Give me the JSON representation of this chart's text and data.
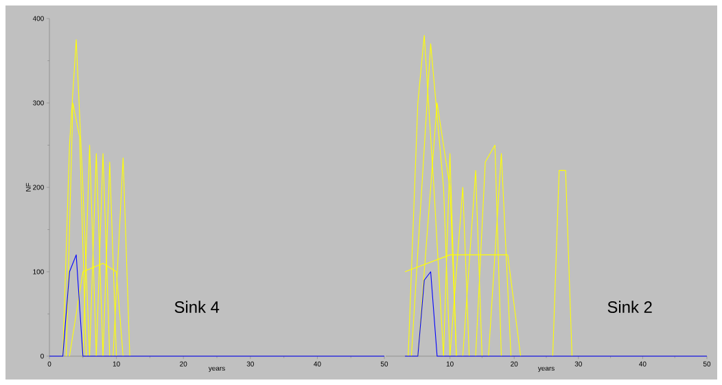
{
  "chart_data": [
    {
      "type": "line",
      "xlabel": "years",
      "ylabel": "NF",
      "xlim": [
        0,
        50
      ],
      "ylim": [
        0,
        400
      ],
      "xticks": [
        0,
        10,
        20,
        30,
        40,
        50
      ],
      "yticks": [
        0,
        100,
        200,
        300,
        400
      ],
      "marker": "none",
      "line_style": "solid",
      "annotations": [
        "Sink 4"
      ],
      "series": [
        {
          "color": "#ffff00",
          "x": [
            2,
            3,
            4,
            5,
            6
          ],
          "values": [
            0,
            250,
            375,
            200,
            0
          ]
        },
        {
          "color": "#ffff00",
          "x": [
            2.5,
            3.5,
            4.5,
            5.5
          ],
          "values": [
            0,
            300,
            260,
            0
          ]
        },
        {
          "color": "#ffff00",
          "x": [
            5,
            6,
            7
          ],
          "values": [
            0,
            250,
            0
          ]
        },
        {
          "color": "#ffff00",
          "x": [
            6,
            7,
            8
          ],
          "values": [
            0,
            240,
            0
          ]
        },
        {
          "color": "#ffff00",
          "x": [
            7,
            8,
            9
          ],
          "values": [
            0,
            240,
            0
          ]
        },
        {
          "color": "#ffff00",
          "x": [
            8,
            9,
            10
          ],
          "values": [
            0,
            230,
            0
          ]
        },
        {
          "color": "#ffff00",
          "x": [
            9.5,
            11,
            12
          ],
          "values": [
            0,
            235,
            0
          ]
        },
        {
          "color": "#ffff00",
          "x": [
            3,
            5,
            8,
            10,
            11
          ],
          "values": [
            0,
            100,
            110,
            100,
            0
          ]
        },
        {
          "color": "#0000ff",
          "x": [
            0,
            2,
            3,
            3.5,
            4,
            5,
            50
          ],
          "values": [
            0,
            0,
            100,
            110,
            120,
            0,
            0
          ]
        }
      ]
    },
    {
      "type": "line",
      "xlabel": "years",
      "xlim": [
        0,
        50
      ],
      "ylim": [
        0,
        400
      ],
      "xticks": [
        10,
        20,
        30,
        40,
        50
      ],
      "tick_labels": "x",
      "marker": "none",
      "line_style": "solid",
      "annotations": [
        "Sink 2"
      ],
      "series": [
        {
          "color": "#ffff00",
          "x": [
            3.5,
            5,
            6,
            7.5,
            9
          ],
          "values": [
            0,
            300,
            380,
            200,
            0
          ]
        },
        {
          "color": "#ffff00",
          "x": [
            4,
            7,
            9,
            10
          ],
          "values": [
            0,
            370,
            200,
            0
          ]
        },
        {
          "color": "#ffff00",
          "x": [
            5,
            8,
            10,
            11
          ],
          "values": [
            0,
            300,
            200,
            0
          ]
        },
        {
          "color": "#ffff00",
          "x": [
            9,
            10,
            11
          ],
          "values": [
            0,
            240,
            0
          ]
        },
        {
          "color": "#ffff00",
          "x": [
            10,
            12,
            13
          ],
          "values": [
            0,
            200,
            0
          ]
        },
        {
          "color": "#ffff00",
          "x": [
            12,
            14,
            15
          ],
          "values": [
            0,
            220,
            0
          ]
        },
        {
          "color": "#ffff00",
          "x": [
            14,
            15.5,
            17,
            18
          ],
          "values": [
            0,
            230,
            250,
            0
          ]
        },
        {
          "color": "#ffff00",
          "x": [
            16,
            18,
            19.5
          ],
          "values": [
            0,
            240,
            0
          ]
        },
        {
          "color": "#ffff00",
          "x": [
            3,
            10,
            19,
            21
          ],
          "values": [
            100,
            120,
            120,
            0
          ]
        },
        {
          "color": "#ffff00",
          "x": [
            26,
            27,
            28,
            29
          ],
          "values": [
            0,
            220,
            220,
            0
          ]
        },
        {
          "color": "#0000ff",
          "x": [
            3,
            5,
            6,
            7,
            8,
            50
          ],
          "values": [
            0,
            0,
            90,
            100,
            0,
            0
          ]
        }
      ]
    }
  ]
}
